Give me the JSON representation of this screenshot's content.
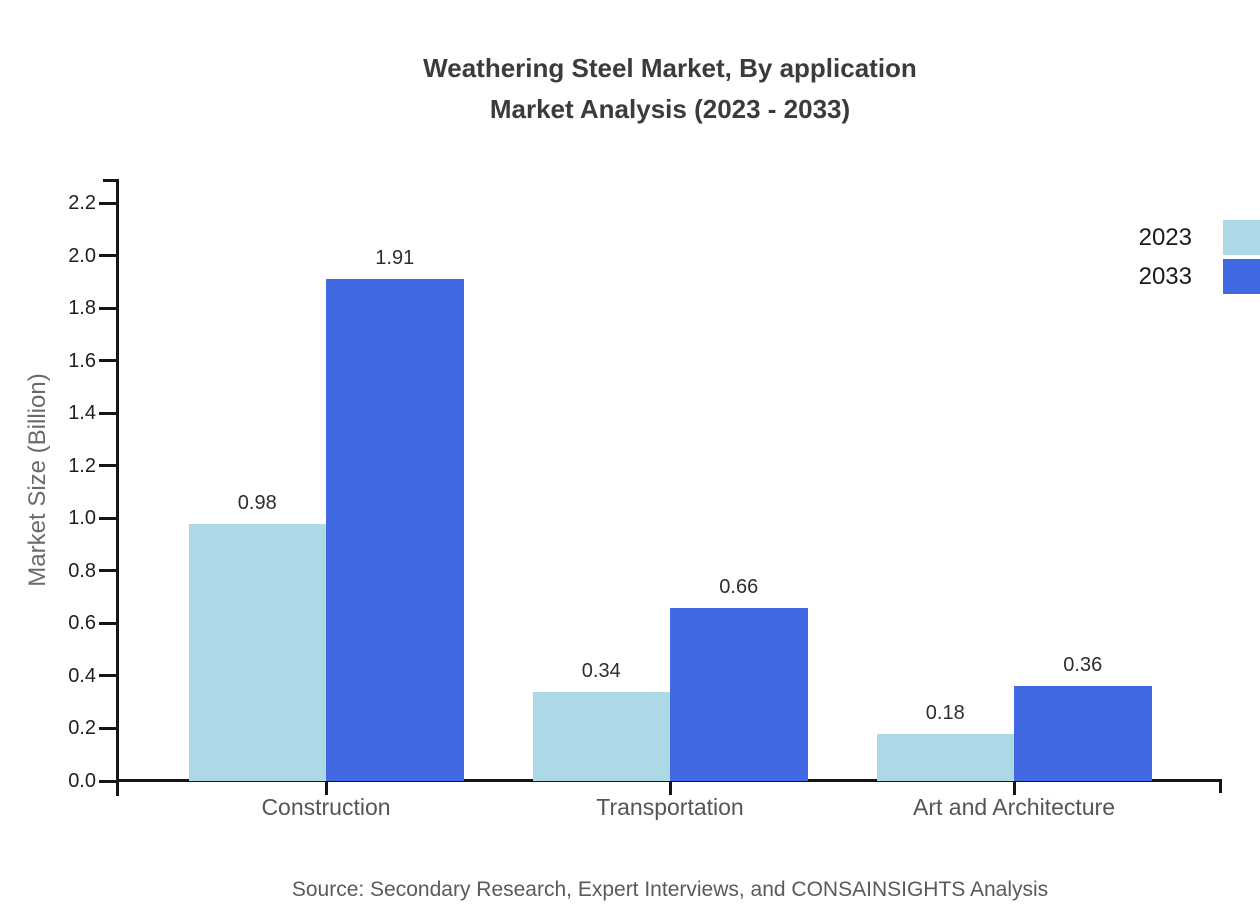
{
  "chart_data": {
    "type": "bar",
    "title_line1": "Weathering Steel Market, By application",
    "title_line2": "Market Analysis (2023 - 2033)",
    "categories": [
      "Construction",
      "Transportation",
      "Art and Architecture"
    ],
    "series": [
      {
        "name": "2023",
        "color": "#add8e6",
        "values": [
          0.98,
          0.34,
          0.18
        ]
      },
      {
        "name": "2033",
        "color": "#4169e1",
        "values": [
          1.91,
          0.66,
          0.36
        ]
      }
    ],
    "xlabel": "",
    "ylabel": "Market Size (Billion)",
    "ylim": [
      0,
      2.29
    ],
    "yticks": [
      0.0,
      0.2,
      0.4,
      0.6,
      0.8,
      1.0,
      1.2,
      1.4,
      1.6,
      1.8,
      2.0,
      2.2
    ],
    "grid": false,
    "legend_position": "top-right",
    "value_labels": "2dp"
  },
  "source": {
    "text": "Source: Secondary Research, Expert Interviews, and CONSAINSIGHTS Analysis"
  },
  "colors": {
    "axis": "#161616",
    "title": "#3b3b3b",
    "tick_label": "#1f1f1f",
    "category_label": "#555555",
    "y_axis_title": "#6b6b6b",
    "source_text": "#5a5a5a",
    "background": "#ffffff"
  }
}
